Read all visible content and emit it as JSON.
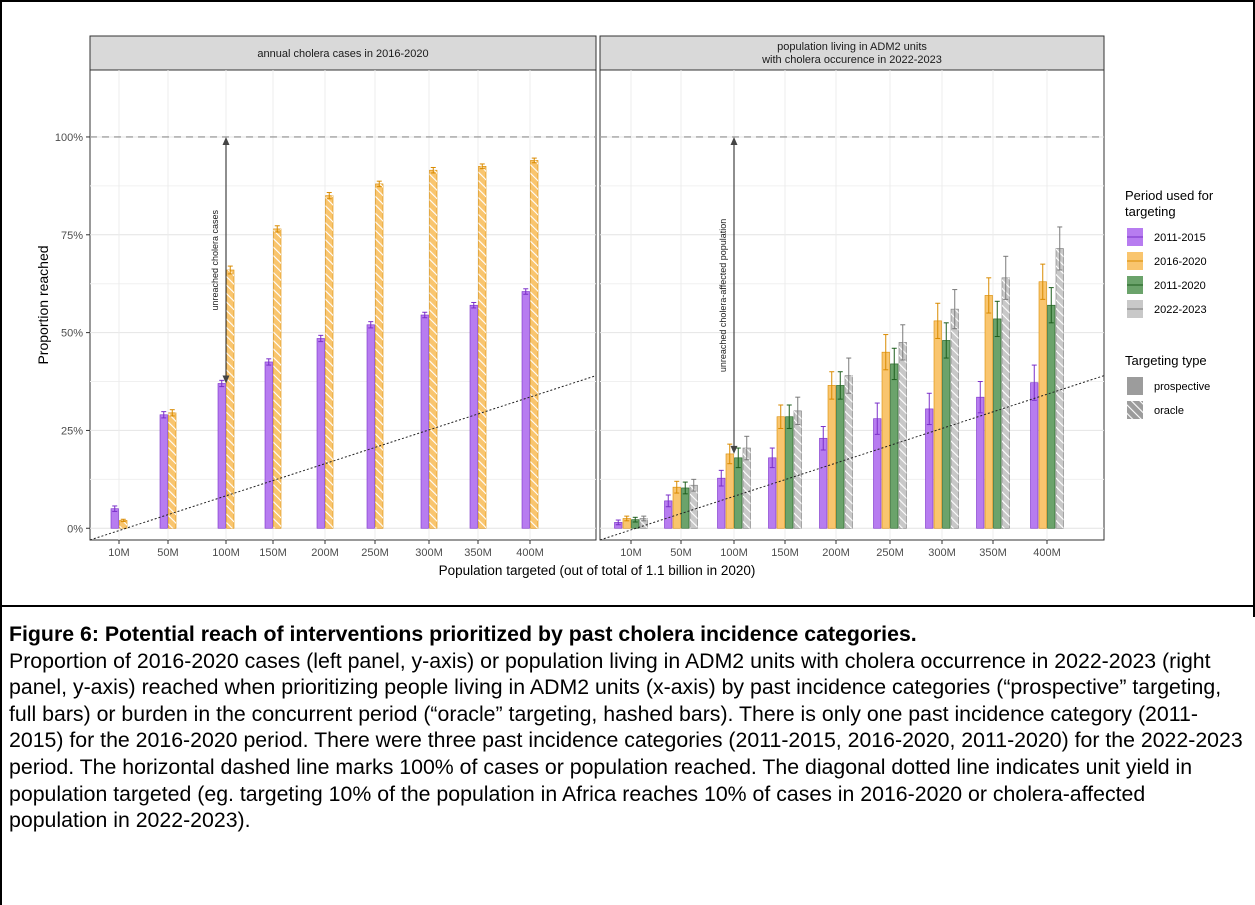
{
  "chart_data": {
    "type": "bar",
    "ylabel": "Proportion reached",
    "xlabel": "Population targeted (out of total of 1.1 billion in 2020)",
    "categories": [
      "10M",
      "50M",
      "100M",
      "150M",
      "200M",
      "250M",
      "300M",
      "350M",
      "400M"
    ],
    "y_ticks": [
      "0%",
      "25%",
      "50%",
      "75%",
      "100%"
    ],
    "ylim": [
      -0.03,
      1.12
    ],
    "grid": true,
    "reference_lines": {
      "horizontal_dashed_at": 1.0,
      "diagonal_dotted": "unit yield"
    },
    "panels": [
      {
        "title": "annual cholera cases in 2016-2020",
        "annotation": "unreached cholera cases",
        "annotation_arrow": {
          "category": "100M",
          "from": 1.0,
          "to": 0.37
        },
        "series": [
          {
            "name": "2011-2015",
            "type": "prospective",
            "values": [
              0.05,
              0.29,
              0.37,
              0.425,
              0.485,
              0.52,
              0.545,
              0.57,
              0.605
            ],
            "err": [
              0.007,
              0.008,
              0.008,
              0.008,
              0.008,
              0.008,
              0.007,
              0.007,
              0.007
            ]
          },
          {
            "name": "2016-2020",
            "type": "oracle",
            "values": [
              0.02,
              0.295,
              0.66,
              0.765,
              0.85,
              0.88,
              0.915,
              0.925,
              0.94
            ],
            "err": [
              0.003,
              0.008,
              0.01,
              0.008,
              0.008,
              0.007,
              0.007,
              0.006,
              0.006
            ]
          }
        ]
      },
      {
        "title": "population living in ADM2 units\nwith cholera occurence in 2022-2023",
        "annotation": "unreached cholera-affected population",
        "annotation_arrow": {
          "category": "100M",
          "from": 1.0,
          "to": 0.19
        },
        "series": [
          {
            "name": "2011-2015",
            "type": "prospective",
            "values": [
              0.015,
              0.07,
              0.128,
              0.18,
              0.23,
              0.28,
              0.305,
              0.335,
              0.372
            ],
            "err": [
              0.006,
              0.015,
              0.02,
              0.025,
              0.03,
              0.04,
              0.04,
              0.04,
              0.045
            ]
          },
          {
            "name": "2016-2020",
            "type": "prospective",
            "values": [
              0.025,
              0.105,
              0.19,
              0.285,
              0.365,
              0.45,
              0.53,
              0.595,
              0.63
            ],
            "err": [
              0.006,
              0.015,
              0.025,
              0.03,
              0.035,
              0.045,
              0.045,
              0.045,
              0.045
            ]
          },
          {
            "name": "2011-2020",
            "type": "prospective",
            "values": [
              0.022,
              0.103,
              0.18,
              0.285,
              0.365,
              0.42,
              0.48,
              0.535,
              0.57
            ],
            "err": [
              0.006,
              0.015,
              0.025,
              0.03,
              0.035,
              0.04,
              0.045,
              0.045,
              0.045
            ]
          },
          {
            "name": "2022-2023",
            "type": "oracle",
            "values": [
              0.025,
              0.11,
              0.205,
              0.3,
              0.39,
              0.475,
              0.56,
              0.64,
              0.715
            ],
            "err": [
              0.006,
              0.015,
              0.03,
              0.035,
              0.045,
              0.045,
              0.05,
              0.055,
              0.055
            ]
          }
        ]
      }
    ],
    "legend": {
      "placement": "right",
      "period_title": "Period used for\ntargeting",
      "periods": [
        {
          "label": "2011-2015",
          "color": "#b77cf0",
          "line": "#7a2fc9"
        },
        {
          "label": "2016-2020",
          "color": "#f9c56e",
          "line": "#d98a00"
        },
        {
          "label": "2011-2020",
          "color": "#6ba36b",
          "line": "#1e5e1e"
        },
        {
          "label": "2022-2023",
          "color": "#c8c8c8",
          "line": "#7a7a7a"
        }
      ],
      "type_title": "Targeting type",
      "types": [
        {
          "label": "prospective"
        },
        {
          "label": "oracle"
        }
      ]
    }
  },
  "caption": {
    "title": "Figure 6: Potential reach of interventions prioritized by past cholera incidence categories.",
    "body": "Proportion of 2016-2020 cases (left panel, y-axis) or population living in ADM2 units with cholera occurrence in 2022-2023 (right panel, y-axis) reached when prioritizing people living in ADM2 units (x-axis) by past incidence categories (“prospective” targeting, full bars) or burden in the concurrent period (“oracle” targeting, hashed bars). There is only one past incidence category (2011-2015) for the 2016-2020 period. There were three past incidence categories (2011-2015, 2016-2020, 2011-2020) for the 2022-2023 period. The horizontal dashed line marks 100% of cases or population reached. The diagonal dotted line indicates unit yield in population targeted (eg. targeting 10% of the population in Africa reaches 10% of cases in 2016-2020 or cholera-affected population in 2022-2023)."
  }
}
